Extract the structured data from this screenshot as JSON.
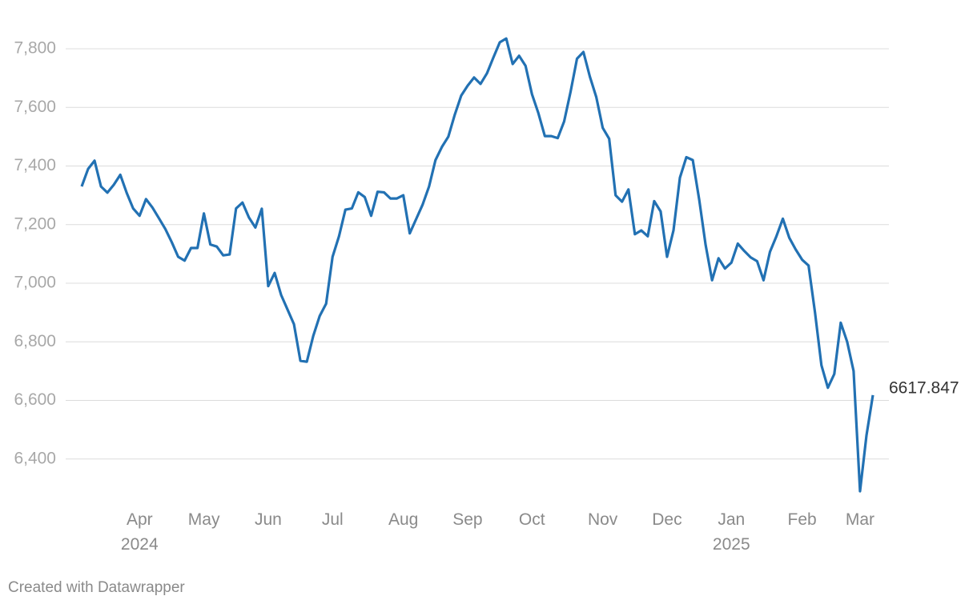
{
  "chart_data": {
    "type": "line",
    "color": "#2271b3",
    "grid": true,
    "credit": "Created with Datawrapper",
    "ylim": [
      6260,
      7920
    ],
    "yticks": [
      {
        "value": 6400,
        "label": "6,400"
      },
      {
        "value": 6600,
        "label": "6,600"
      },
      {
        "value": 6800,
        "label": "6,800"
      },
      {
        "value": 7000,
        "label": "7,000"
      },
      {
        "value": 7200,
        "label": "7,200"
      },
      {
        "value": 7400,
        "label": "7,400"
      },
      {
        "value": 7600,
        "label": "7,600"
      },
      {
        "value": 7800,
        "label": "7,800"
      }
    ],
    "categories": [
      null,
      null,
      null,
      null,
      null,
      null,
      null,
      null,
      null,
      "Apr\n2024",
      null,
      null,
      null,
      null,
      null,
      null,
      null,
      null,
      null,
      "May",
      null,
      null,
      null,
      null,
      null,
      null,
      null,
      null,
      null,
      "Jun",
      null,
      null,
      null,
      null,
      null,
      null,
      null,
      null,
      null,
      "Jul",
      null,
      null,
      null,
      null,
      null,
      null,
      null,
      null,
      null,
      null,
      "Aug",
      null,
      null,
      null,
      null,
      null,
      null,
      null,
      null,
      null,
      "Sep",
      null,
      null,
      null,
      null,
      null,
      null,
      null,
      null,
      null,
      "Oct",
      null,
      null,
      null,
      null,
      null,
      null,
      null,
      null,
      null,
      null,
      "Nov",
      null,
      null,
      null,
      null,
      null,
      null,
      null,
      null,
      null,
      "Dec",
      null,
      null,
      null,
      null,
      null,
      null,
      null,
      null,
      null,
      "Jan\n2025",
      null,
      null,
      null,
      null,
      null,
      null,
      null,
      null,
      null,
      null,
      "Feb",
      null,
      null,
      null,
      null,
      null,
      null,
      null,
      null,
      "Mar",
      null,
      null
    ],
    "values": [
      7330,
      7390,
      7418,
      7330,
      7309,
      7336,
      7370,
      7308,
      7255,
      7230,
      7287,
      7258,
      7222,
      7185,
      7140,
      7090,
      7077,
      7120,
      7120,
      7238,
      7132,
      7125,
      7095,
      7098,
      7255,
      7275,
      7224,
      7190,
      7254,
      6990,
      7035,
      6960,
      6910,
      6860,
      6735,
      6732,
      6820,
      6888,
      6930,
      7090,
      7160,
      7251,
      7255,
      7310,
      7294,
      7230,
      7312,
      7310,
      7289,
      7289,
      7300,
      7170,
      7219,
      7268,
      7330,
      7420,
      7465,
      7500,
      7575,
      7640,
      7674,
      7702,
      7680,
      7716,
      7770,
      7822,
      7835,
      7748,
      7776,
      7742,
      7645,
      7580,
      7502,
      7502,
      7495,
      7552,
      7653,
      7766,
      7789,
      7705,
      7635,
      7530,
      7493,
      7300,
      7278,
      7320,
      7167,
      7180,
      7160,
      7280,
      7245,
      7090,
      7180,
      7360,
      7430,
      7420,
      7285,
      7130,
      7010,
      7085,
      7050,
      7070,
      7135,
      7110,
      7088,
      7075,
      7010,
      7107,
      7160,
      7220,
      7155,
      7115,
      7080,
      7060,
      6900,
      6720,
      6643,
      6690,
      6865,
      6800,
      6700,
      6290,
      6480,
      6617.847
    ]
  }
}
